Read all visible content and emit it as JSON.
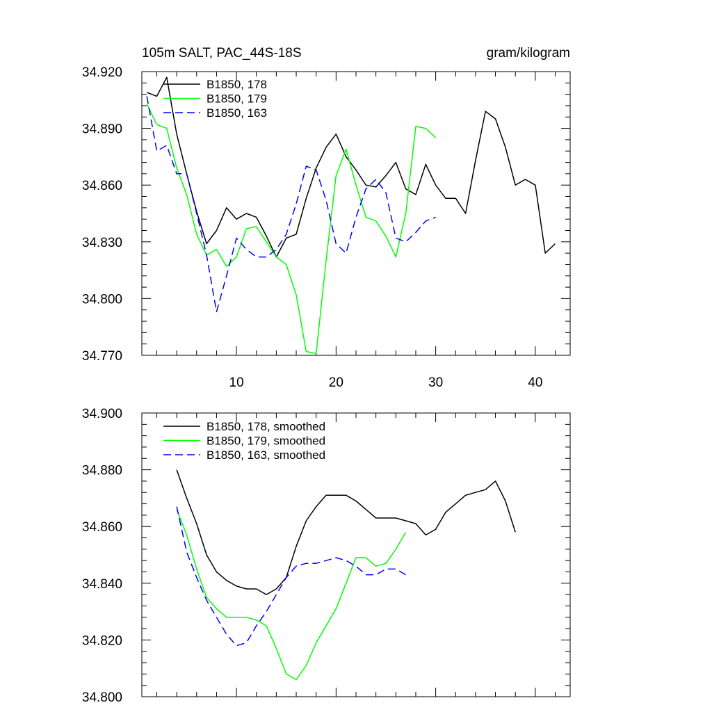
{
  "chart_data": [
    {
      "type": "line",
      "title": "105m SALT, PAC_44S-18S",
      "units": "gram/kilogram",
      "xlim": [
        0.5,
        43.5
      ],
      "ylim": [
        34.77,
        34.92
      ],
      "xticks": [
        10,
        20,
        30,
        40
      ],
      "xtick_labels": [
        "10",
        "20",
        "30",
        "40"
      ],
      "yticks": [
        34.77,
        34.8,
        34.83,
        34.86,
        34.89,
        34.92
      ],
      "ytick_labels": [
        "34.770",
        "34.800",
        "34.830",
        "34.860",
        "34.890",
        "34.920"
      ],
      "series": [
        {
          "name": "B1850, 178",
          "color": "#000000",
          "dash": "solid",
          "x_start": 1,
          "values": [
            34.909,
            34.907,
            34.917,
            34.887,
            34.866,
            34.846,
            34.829,
            34.836,
            34.848,
            34.842,
            34.845,
            34.843,
            34.833,
            34.822,
            34.832,
            34.834,
            34.853,
            34.869,
            34.88,
            34.887,
            34.875,
            34.868,
            34.86,
            34.859,
            34.865,
            34.872,
            34.858,
            34.855,
            34.871,
            34.86,
            34.853,
            34.853,
            34.845,
            34.873,
            34.899,
            34.895,
            34.88,
            34.86,
            34.863,
            34.86,
            34.824,
            34.829
          ]
        },
        {
          "name": "B1850, 179",
          "color": "#00ff00",
          "dash": "solid",
          "x_start": 1,
          "values": [
            34.903,
            34.892,
            34.89,
            34.869,
            34.855,
            34.834,
            34.823,
            34.826,
            34.817,
            34.822,
            34.837,
            34.838,
            34.83,
            34.822,
            34.818,
            34.802,
            34.772,
            34.771,
            34.82,
            34.865,
            34.879,
            34.86,
            34.843,
            34.841,
            34.833,
            34.822,
            34.845,
            34.891,
            34.89,
            34.885
          ]
        },
        {
          "name": "B1850, 163",
          "color": "#0000ff",
          "dash": "dashed",
          "x_start": 1,
          "values": [
            34.907,
            34.878,
            34.881,
            34.866,
            34.866,
            34.845,
            34.823,
            34.793,
            34.812,
            34.832,
            34.826,
            34.822,
            34.822,
            34.826,
            34.834,
            34.85,
            34.87,
            34.868,
            34.852,
            34.829,
            34.824,
            34.843,
            34.858,
            34.863,
            34.856,
            34.832,
            34.83,
            34.835,
            34.841,
            34.843
          ]
        }
      ]
    },
    {
      "type": "line",
      "xlim": [
        0.5,
        43.5
      ],
      "ylim": [
        34.8,
        34.9
      ],
      "xticks": [
        10,
        20,
        30,
        40
      ],
      "yticks": [
        34.8,
        34.82,
        34.84,
        34.86,
        34.88,
        34.9
      ],
      "ytick_labels": [
        "34.800",
        "34.820",
        "34.840",
        "34.860",
        "34.880",
        "34.900"
      ],
      "series": [
        {
          "name": "B1850, 178, smoothed",
          "color": "#000000",
          "dash": "solid",
          "x_start": 4,
          "values": [
            34.88,
            34.87,
            34.861,
            34.85,
            34.844,
            34.841,
            34.839,
            34.838,
            34.838,
            34.836,
            34.838,
            34.842,
            34.853,
            34.862,
            34.867,
            34.871,
            34.871,
            34.871,
            34.869,
            34.866,
            34.863,
            34.863,
            34.863,
            34.862,
            34.861,
            34.857,
            34.859,
            34.865,
            34.868,
            34.871,
            34.872,
            34.873,
            34.876,
            34.869,
            34.858
          ]
        },
        {
          "name": "B1850, 179, smoothed",
          "color": "#00ff00",
          "dash": "solid",
          "x_start": 4,
          "values": [
            34.866,
            34.857,
            34.845,
            34.835,
            34.831,
            34.828,
            34.828,
            34.828,
            34.827,
            34.825,
            34.817,
            34.808,
            34.806,
            34.811,
            34.819,
            34.825,
            34.831,
            34.84,
            34.849,
            34.849,
            34.846,
            34.847,
            34.852,
            34.858
          ]
        },
        {
          "name": "B1850, 163, smoothed",
          "color": "#0000ff",
          "dash": "dashed",
          "x_start": 4,
          "values": [
            34.867,
            34.851,
            34.842,
            34.834,
            34.828,
            34.822,
            34.818,
            34.819,
            34.825,
            34.83,
            34.836,
            34.842,
            34.846,
            34.847,
            34.847,
            34.848,
            34.849,
            34.848,
            34.846,
            34.843,
            34.843,
            34.845,
            34.845,
            34.843
          ]
        }
      ]
    }
  ]
}
